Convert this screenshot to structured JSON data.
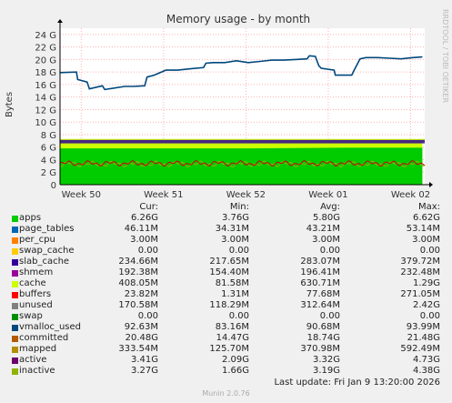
{
  "title": "Memory usage - by month",
  "side_text": "RRDTOOL / TOBI OETIKER",
  "footer": "Munin 2.0.76",
  "last_update": "Last update:  Fri Jan  9 13:20:00 2026",
  "legend_headers": [
    "Cur:",
    "Min:",
    "Avg:",
    "Max:"
  ],
  "legend": [
    {
      "name": "apps",
      "color": "#00cc00",
      "cur": "6.26G",
      "min": "3.76G",
      "avg": "5.80G",
      "max": "6.62G"
    },
    {
      "name": "page_tables",
      "color": "#0066b3",
      "cur": "46.11M",
      "min": "34.31M",
      "avg": "43.21M",
      "max": "53.14M"
    },
    {
      "name": "per_cpu",
      "color": "#ff8000",
      "cur": "3.00M",
      "min": "3.00M",
      "avg": "3.00M",
      "max": "3.00M"
    },
    {
      "name": "swap_cache",
      "color": "#ffcc00",
      "cur": "0.00",
      "min": "0.00",
      "avg": "0.00",
      "max": "0.00"
    },
    {
      "name": "slab_cache",
      "color": "#330099",
      "cur": "234.66M",
      "min": "217.65M",
      "avg": "283.07M",
      "max": "379.72M"
    },
    {
      "name": "shmem",
      "color": "#990099",
      "cur": "192.38M",
      "min": "154.40M",
      "avg": "196.41M",
      "max": "232.48M"
    },
    {
      "name": "cache",
      "color": "#ccff00",
      "cur": "408.05M",
      "min": "81.58M",
      "avg": "630.71M",
      "max": "1.29G"
    },
    {
      "name": "buffers",
      "color": "#ff0000",
      "cur": "23.82M",
      "min": "1.31M",
      "avg": "77.68M",
      "max": "271.05M"
    },
    {
      "name": "unused",
      "color": "#808080",
      "cur": "170.58M",
      "min": "118.29M",
      "avg": "312.64M",
      "max": "2.42G"
    },
    {
      "name": "swap",
      "color": "#008f00",
      "cur": "0.00",
      "min": "0.00",
      "avg": "0.00",
      "max": "0.00"
    },
    {
      "name": "vmalloc_used",
      "color": "#00487d",
      "cur": "92.63M",
      "min": "83.16M",
      "avg": "90.68M",
      "max": "93.99M"
    },
    {
      "name": "committed",
      "color": "#b35a00",
      "cur": "20.48G",
      "min": "14.47G",
      "avg": "18.74G",
      "max": "21.48G"
    },
    {
      "name": "mapped",
      "color": "#b38f00",
      "cur": "333.54M",
      "min": "125.70M",
      "avg": "370.98M",
      "max": "592.49M"
    },
    {
      "name": "active",
      "color": "#6b006b",
      "cur": "3.41G",
      "min": "2.09G",
      "avg": "3.32G",
      "max": "4.73G"
    },
    {
      "name": "inactive",
      "color": "#8fb300",
      "cur": "3.27G",
      "min": "1.66G",
      "avg": "3.19G",
      "max": "4.38G"
    }
  ],
  "chart_data": {
    "type": "area",
    "title": "Memory usage - by month",
    "ylabel": "Bytes",
    "ylim": [
      0,
      25
    ],
    "yticks": [
      "0",
      "2 G",
      "4 G",
      "6 G",
      "8 G",
      "10 G",
      "12 G",
      "14 G",
      "16 G",
      "18 G",
      "20 G",
      "22 G",
      "24 G"
    ],
    "xticks": [
      "Week 50",
      "Week 51",
      "Week 52",
      "Week 01",
      "Week 02"
    ],
    "xlim": [
      0,
      31
    ],
    "xtick_positions": [
      1.8,
      8.8,
      15.8,
      22.8,
      29.8
    ],
    "grid": true,
    "series": [
      {
        "name": "committed",
        "color": "#00487d",
        "x": [
          0,
          1.4,
          1.5,
          2.3,
          2.5,
          3.6,
          3.8,
          5.5,
          6.2,
          7.2,
          7.4,
          8.0,
          9.0,
          10.0,
          11.0,
          12.2,
          12.4,
          13.0,
          14.0,
          15.0,
          16.0,
          17.0,
          18.0,
          19.0,
          20.0,
          21.0,
          21.2,
          21.7,
          22.0,
          22.2,
          23.3,
          23.4,
          24.8,
          25.0,
          25.5,
          26.0,
          27.0,
          28.0,
          29.0,
          30.0,
          30.8
        ],
        "y": [
          17.9,
          18.0,
          16.8,
          16.4,
          15.3,
          15.8,
          15.2,
          15.7,
          15.7,
          15.8,
          17.2,
          17.5,
          18.3,
          18.3,
          18.5,
          18.7,
          19.4,
          19.5,
          19.5,
          19.8,
          19.5,
          19.7,
          19.9,
          19.9,
          20.0,
          20.1,
          20.6,
          20.5,
          19.0,
          18.6,
          18.3,
          17.5,
          17.5,
          18.3,
          20.1,
          20.3,
          20.3,
          20.2,
          20.1,
          20.3,
          20.4
        ]
      },
      {
        "name": "cache",
        "color": "#ccff00",
        "x": [
          0,
          8,
          16,
          24,
          30.8
        ],
        "y": [
          7.1,
          7.2,
          7.1,
          7.2,
          7.2
        ]
      },
      {
        "name": "apps",
        "color": "#00cc00",
        "x": [
          0,
          8,
          16,
          24,
          30.8
        ],
        "y": [
          5.8,
          5.8,
          5.8,
          5.9,
          5.9
        ]
      },
      {
        "name": "inactive",
        "color": "#8fb300",
        "x": [
          0,
          8,
          16,
          24,
          30.8
        ],
        "y": [
          3.3,
          3.2,
          3.1,
          3.2,
          3.3
        ]
      },
      {
        "name": "active",
        "color": "#6b006b",
        "x": [
          0,
          8,
          16,
          24,
          30.8
        ],
        "y": [
          3.4,
          3.3,
          3.3,
          3.3,
          3.4
        ]
      }
    ]
  }
}
